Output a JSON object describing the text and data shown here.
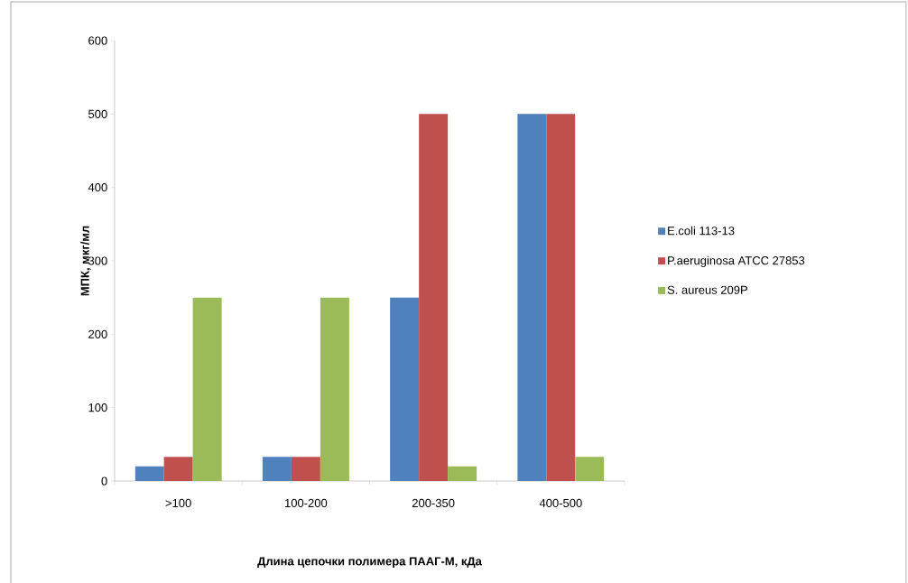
{
  "chart_data": {
    "type": "bar",
    "xlabel": "Длина цепочки полимера ПААГ-М, кДа",
    "ylabel": "МПК, мкг/мл",
    "categories": [
      ">100",
      "100-200",
      "200-350",
      "400-500"
    ],
    "series": [
      {
        "name": "E.coli 113-13",
        "color": "#4f81bd",
        "values": [
          20,
          33,
          250,
          500
        ]
      },
      {
        "name": "P.aeruginosa ATCC 27853",
        "color": "#c0504d",
        "values": [
          33,
          33,
          500,
          500
        ]
      },
      {
        "name": "S. aureus 209P",
        "color": "#9bbb59",
        "values": [
          250,
          250,
          20,
          33
        ]
      }
    ],
    "ylim": [
      0,
      600
    ],
    "yticks": [
      0,
      100,
      200,
      300,
      400,
      500,
      600
    ],
    "legend": "right",
    "grid": false
  }
}
